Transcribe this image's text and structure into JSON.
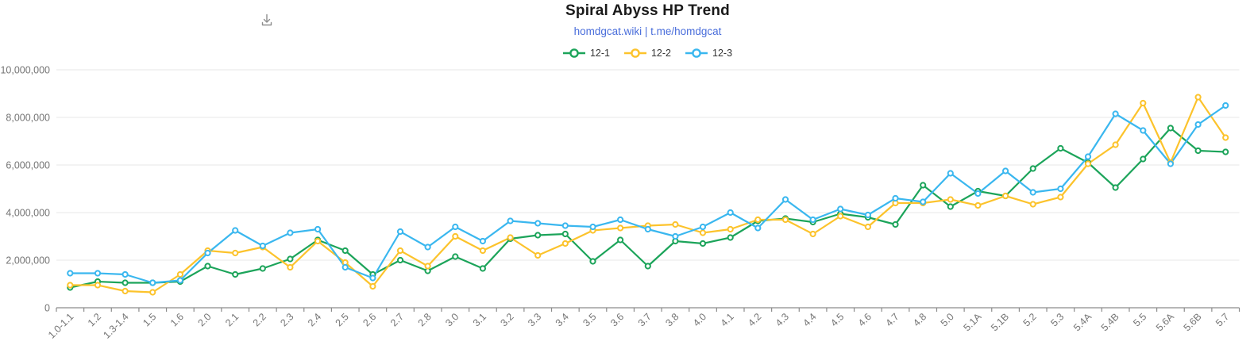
{
  "header": {
    "title": "Spiral Abyss HP Trend",
    "subtitle": "homdgcat.wiki | t.me/homdgcat"
  },
  "toolbox": {
    "save_icon": "download-icon"
  },
  "colors": {
    "background": "#ffffff",
    "title_text": "#1a1a1a",
    "subtitle_link": "#4a6edb",
    "legend_text": "#333333",
    "axis_label": "#757575",
    "axis_line": "#8c8c8c",
    "grid_line": "#e7e7e7",
    "toolbox_icon": "#8f8f8f",
    "series_green": "#1ca45a",
    "series_yellow": "#fcc32c",
    "series_blue": "#3ab7ef"
  },
  "chart_data": {
    "type": "line",
    "title": "Spiral Abyss HP Trend",
    "subtitle": "homdgcat.wiki | t.me/homdgcat",
    "legend_position": "top",
    "grid": true,
    "xlabel": "",
    "ylabel": "",
    "ylim": [
      0,
      10000000
    ],
    "y_ticks": [
      0,
      2000000,
      4000000,
      6000000,
      8000000,
      10000000
    ],
    "y_tick_labels": [
      "0",
      "2,000,000",
      "4,000,000",
      "6,000,000",
      "8,000,000",
      "10,000,000"
    ],
    "categories": [
      "1.0-1.1",
      "1.2",
      "1.3-1.4",
      "1.5",
      "1.6",
      "2.0",
      "2.1",
      "2.2",
      "2.3",
      "2.4",
      "2.5",
      "2.6",
      "2.7",
      "2.8",
      "3.0",
      "3.1",
      "3.2",
      "3.3",
      "3.4",
      "3.5",
      "3.6",
      "3.7",
      "3.8",
      "4.0",
      "4.1",
      "4.2",
      "4.3",
      "4.4",
      "4.5",
      "4.6",
      "4.7",
      "4.8",
      "5.0",
      "5.1A",
      "5.1B",
      "5.2",
      "5.3",
      "5.4A",
      "5.4B",
      "5.5",
      "5.6A",
      "5.6B",
      "5.7"
    ],
    "series": [
      {
        "name": "12-1",
        "color": "#1ca45a",
        "values": [
          850000,
          1100000,
          1050000,
          1050000,
          1100000,
          1750000,
          1400000,
          1650000,
          2050000,
          2850000,
          2400000,
          1400000,
          2000000,
          1550000,
          2150000,
          1650000,
          2900000,
          3050000,
          3100000,
          1950000,
          2850000,
          1750000,
          2800000,
          2700000,
          2950000,
          3650000,
          3750000,
          3600000,
          3950000,
          3800000,
          3500000,
          5150000,
          4250000,
          4900000,
          4700000,
          5850000,
          6700000,
          6100000,
          5050000,
          6250000,
          7550000,
          6600000,
          6550000
        ]
      },
      {
        "name": "12-2",
        "color": "#fcc32c",
        "values": [
          950000,
          950000,
          700000,
          650000,
          1400000,
          2400000,
          2300000,
          2550000,
          1700000,
          2800000,
          1900000,
          900000,
          2400000,
          1750000,
          3000000,
          2400000,
          2950000,
          2200000,
          2700000,
          3250000,
          3350000,
          3450000,
          3500000,
          3150000,
          3300000,
          3700000,
          3700000,
          3100000,
          3850000,
          3400000,
          4400000,
          4400000,
          4550000,
          4300000,
          4700000,
          4350000,
          4650000,
          6050000,
          6850000,
          8600000,
          6100000,
          8850000,
          7150000
        ]
      },
      {
        "name": "12-3",
        "color": "#3ab7ef",
        "values": [
          1450000,
          1450000,
          1400000,
          1050000,
          1150000,
          2300000,
          3250000,
          2600000,
          3150000,
          3300000,
          1700000,
          1250000,
          3200000,
          2550000,
          3400000,
          2800000,
          3650000,
          3550000,
          3450000,
          3400000,
          3700000,
          3300000,
          3000000,
          3400000,
          4000000,
          3350000,
          4550000,
          3700000,
          4150000,
          3900000,
          4600000,
          4450000,
          5650000,
          4800000,
          5750000,
          4850000,
          5000000,
          6350000,
          8150000,
          7450000,
          6050000,
          7700000,
          8500000
        ]
      }
    ]
  }
}
